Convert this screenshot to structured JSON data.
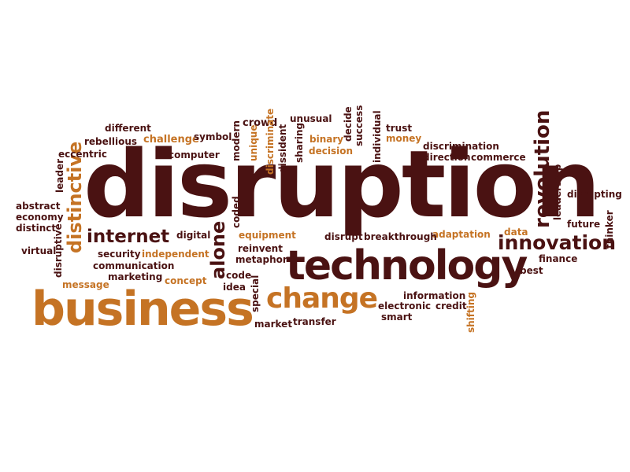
{
  "colors": {
    "dark": "#4a1212",
    "accent": "#c57324",
    "background": "#ffffff"
  },
  "words": {
    "disruption": "disruption",
    "technology": "technology",
    "business": "business",
    "change": "change",
    "innovation": "innovation",
    "revolution": "revolution",
    "internet": "internet",
    "distinctive": "distinctive",
    "alone": "alone",
    "different": "different",
    "rebellious": "rebellious",
    "eccentric": "eccentric",
    "challenge": "challenge",
    "symbol": "symbol",
    "computer": "computer",
    "modern": "modern",
    "crowd": "crowd",
    "unique": "unique",
    "discriminate": "discriminate",
    "dissident": "dissident",
    "unusual": "unusual",
    "sharing": "sharing",
    "binary": "binary",
    "decision": "decision",
    "decide": "decide",
    "success": "success",
    "individual": "individual",
    "trust": "trust",
    "money": "money",
    "discrimination": "discrimination",
    "direction": "direction",
    "commerce": "commerce",
    "leadership": "leadership",
    "disrupting": "disrupting",
    "future": "future",
    "thinker": "thinker",
    "data": "data",
    "adaptation": "adaptation",
    "finance": "finance",
    "best": "best",
    "leader": "leader",
    "abstract": "abstract",
    "economy": "economy",
    "distinct": "distinct",
    "disruptive": "disruptive",
    "virtual": "virtual",
    "message": "message",
    "security": "security",
    "independent": "independent",
    "communication": "communication",
    "marketing": "marketing",
    "concept": "concept",
    "digital": "digital",
    "equipment": "equipment",
    "reinvent": "reinvent",
    "metaphor": "metaphor",
    "coded": "coded",
    "code": "code",
    "idea": "idea",
    "special": "special",
    "disrupt": "disrupt",
    "breakthrough": "breakthrough",
    "information": "information",
    "electronic": "electronic",
    "credit": "credit",
    "smart": "smart",
    "shifting": "shifting",
    "market": "market",
    "transfer": "transfer"
  }
}
